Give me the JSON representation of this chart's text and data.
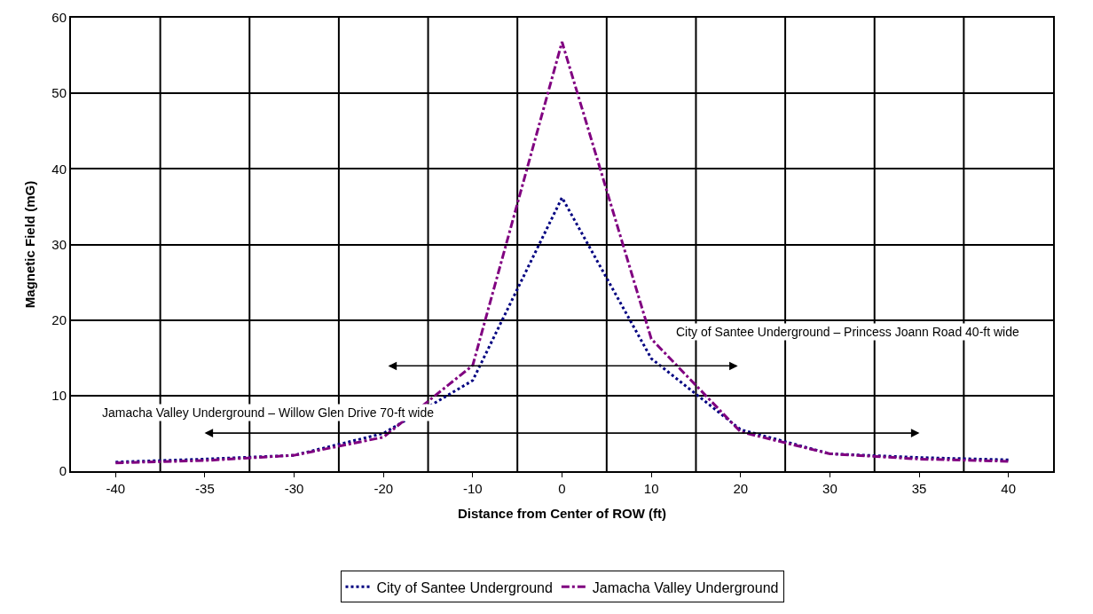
{
  "chart_data": {
    "type": "line",
    "xlabel": "Distance from Center of ROW (ft)",
    "ylabel": "Magnetic Field (mG)",
    "categories": [
      "-40",
      "-35",
      "-30",
      "-20",
      "-10",
      "0",
      "10",
      "20",
      "30",
      "35",
      "40"
    ],
    "series": [
      {
        "name": "City of Santee Underground",
        "color": "#000080",
        "line_style": "dotted",
        "values": [
          1.2,
          1.6,
          2.1,
          5.0,
          12.0,
          36.2,
          14.9,
          5.5,
          2.3,
          1.8,
          1.5
        ]
      },
      {
        "name": "Jamacha Valley Underground",
        "color": "#800080",
        "line_style": "dashdot",
        "values": [
          1.1,
          1.4,
          2.1,
          4.5,
          14.0,
          56.8,
          17.5,
          5.2,
          2.3,
          1.6,
          1.3
        ]
      }
    ],
    "ylim": [
      0,
      60
    ],
    "yticks": [
      0,
      10,
      20,
      30,
      40,
      50,
      60
    ],
    "grid": true,
    "legend": "bottom",
    "marker": "none",
    "annotations": [
      "City of Santee Underground – Princess Joann Road 40-ft wide",
      "Jamacha Valley Underground – Willow Glen Drive 70-ft wide"
    ]
  }
}
